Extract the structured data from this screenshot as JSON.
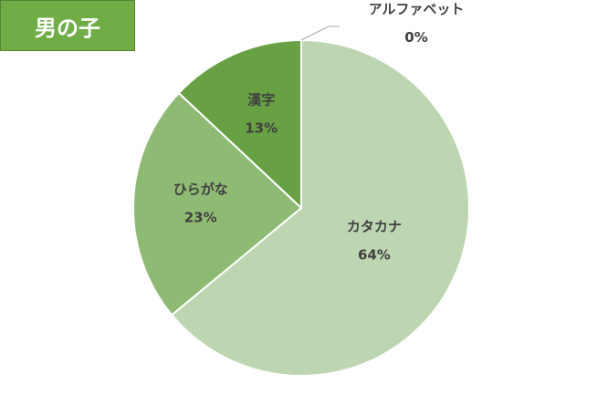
{
  "title": "男の子",
  "chart_data": {
    "type": "pie",
    "categories": [
      "カタカナ",
      "ひらがな",
      "漢字",
      "アルファベット"
    ],
    "values": [
      64,
      23,
      13,
      0
    ],
    "value_labels": [
      "64%",
      "23%",
      "13%",
      "0%"
    ],
    "colors": [
      "#bdd6b1",
      "#8fba74",
      "#67a143",
      "#4f7a31"
    ],
    "legend": "none",
    "start_angle_deg": 0,
    "direction": "clockwise"
  }
}
